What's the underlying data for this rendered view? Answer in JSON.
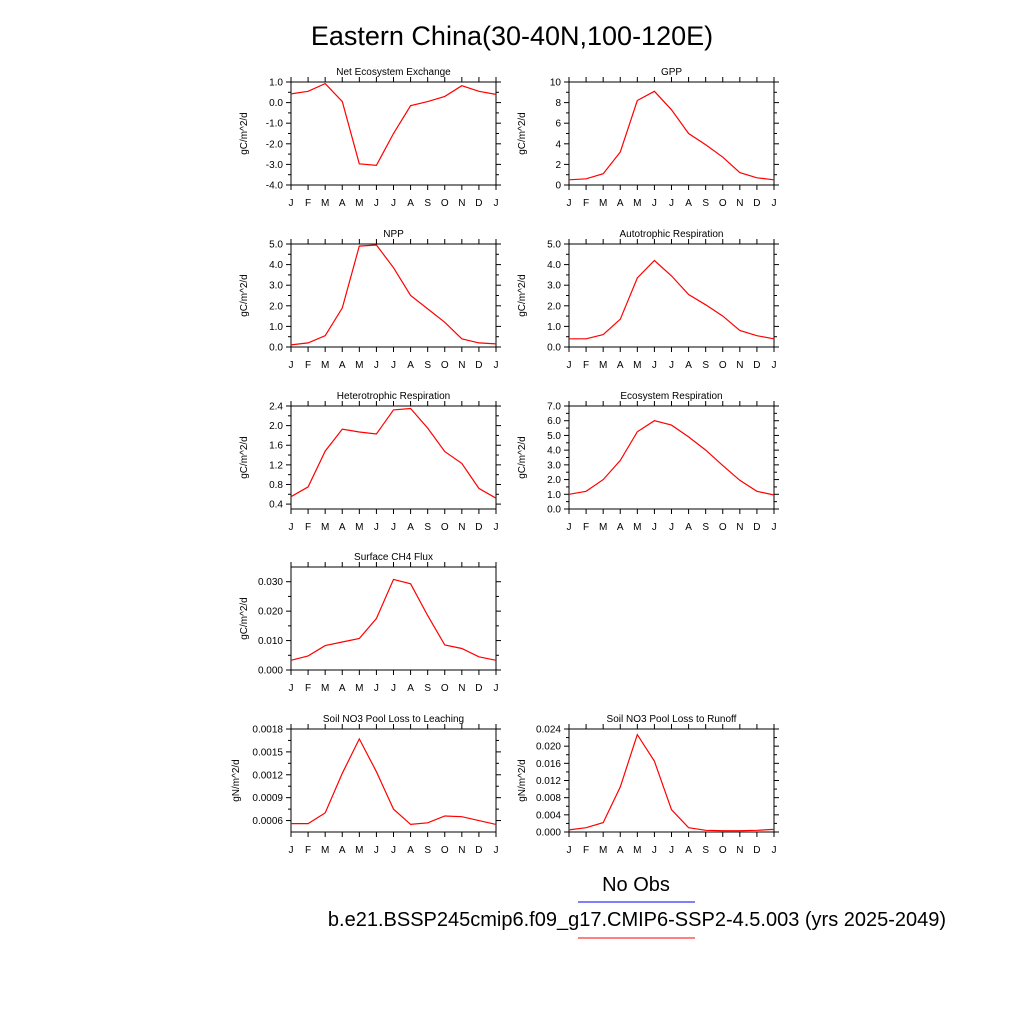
{
  "figure": {
    "title": "Eastern China(30-40N,100-120E)",
    "line_color": "#ff0000",
    "months": [
      "J",
      "F",
      "M",
      "A",
      "M",
      "J",
      "J",
      "A",
      "S",
      "O",
      "N",
      "D",
      "J"
    ]
  },
  "legend": {
    "items": [
      {
        "label": "No Obs",
        "color": "#0000ff"
      },
      {
        "label": "b.e21.BSSP245cmip6.f09_g17.CMIP6-SSP2-4.5.003 (yrs 2025-2049)",
        "color": "#ff0000"
      }
    ]
  },
  "chart_data": [
    {
      "type": "line",
      "title": "Net Ecosystem Exchange",
      "ylabel": "gC/m^2/d",
      "ylim": [
        -4.0,
        1.0
      ],
      "yticks": [
        "-4.0",
        "-3.0",
        "-2.0",
        "-1.0",
        "0.0",
        "1.0"
      ],
      "yticks_values": [
        -4.0,
        -3.0,
        -2.0,
        -1.0,
        0.0,
        1.0
      ],
      "values": [
        0.42,
        0.55,
        0.92,
        0.05,
        -2.97,
        -3.05,
        -1.5,
        -0.15,
        0.05,
        0.3,
        0.82,
        0.55,
        0.4
      ]
    },
    {
      "type": "line",
      "title": "GPP",
      "ylabel": "gC/m^2/d",
      "ylim": [
        0,
        10
      ],
      "yticks": [
        "0",
        "2",
        "4",
        "6",
        "8",
        "10"
      ],
      "yticks_values": [
        0,
        2,
        4,
        6,
        8,
        10
      ],
      "values": [
        0.5,
        0.6,
        1.1,
        3.2,
        8.2,
        9.1,
        7.3,
        5.0,
        3.9,
        2.7,
        1.2,
        0.7,
        0.5
      ]
    },
    {
      "type": "line",
      "title": "NPP",
      "ylabel": "gC/m^2/d",
      "ylim": [
        0.0,
        5.0
      ],
      "yticks": [
        "0.0",
        "1.0",
        "2.0",
        "3.0",
        "4.0",
        "5.0"
      ],
      "yticks_values": [
        0,
        1,
        2,
        3,
        4,
        5
      ],
      "values": [
        0.1,
        0.2,
        0.55,
        1.9,
        4.9,
        4.95,
        3.85,
        2.5,
        1.85,
        1.2,
        0.4,
        0.2,
        0.15
      ]
    },
    {
      "type": "line",
      "title": "Autotrophic Respiration",
      "ylabel": "gC/m^2/d",
      "ylim": [
        0.0,
        5.0
      ],
      "yticks": [
        "0.0",
        "1.0",
        "2.0",
        "3.0",
        "4.0",
        "5.0"
      ],
      "yticks_values": [
        0,
        1,
        2,
        3,
        4,
        5
      ],
      "values": [
        0.4,
        0.4,
        0.6,
        1.35,
        3.35,
        4.2,
        3.45,
        2.55,
        2.05,
        1.5,
        0.8,
        0.55,
        0.4
      ]
    },
    {
      "type": "line",
      "title": "Heterotrophic Respiration",
      "ylabel": "gC/m^2/d",
      "ylim": [
        0.3,
        2.4
      ],
      "yticks": [
        "0.4",
        "0.8",
        "1.2",
        "1.6",
        "2.0",
        "2.4"
      ],
      "yticks_values": [
        0.4,
        0.8,
        1.2,
        1.6,
        2.0,
        2.4
      ],
      "values": [
        0.55,
        0.75,
        1.48,
        1.93,
        1.87,
        1.83,
        2.32,
        2.35,
        1.95,
        1.47,
        1.23,
        0.72,
        0.52
      ]
    },
    {
      "type": "line",
      "title": "Ecosystem Respiration",
      "ylabel": "gC/m^2/d",
      "ylim": [
        0.0,
        7.0
      ],
      "yticks": [
        "0.0",
        "1.0",
        "2.0",
        "3.0",
        "4.0",
        "5.0",
        "6.0",
        "7.0"
      ],
      "yticks_values": [
        0,
        1,
        2,
        3,
        4,
        5,
        6,
        7
      ],
      "values": [
        1.0,
        1.2,
        2.0,
        3.3,
        5.25,
        6.0,
        5.7,
        4.9,
        4.0,
        2.95,
        1.95,
        1.2,
        0.95
      ]
    },
    {
      "type": "line",
      "title": "Surface CH4 Flux",
      "ylabel": "gC/m^2/d",
      "ylim": [
        0.0,
        0.035
      ],
      "yticks": [
        "0.000",
        "0.010",
        "0.020",
        "0.030"
      ],
      "yticks_values": [
        0.0,
        0.01,
        0.02,
        0.03
      ],
      "values": [
        0.0033,
        0.0048,
        0.0083,
        0.0095,
        0.0107,
        0.0175,
        0.0308,
        0.0293,
        0.0185,
        0.0085,
        0.0073,
        0.0045,
        0.0033
      ]
    },
    {
      "type": "line",
      "title": "Soil NO3 Pool Loss to Leaching",
      "ylabel": "gN/m^2/d",
      "ylim": [
        0.00045,
        0.0018
      ],
      "yticks": [
        "0.0006",
        "0.0009",
        "0.0012",
        "0.0015",
        "0.0018"
      ],
      "yticks_values": [
        0.0006,
        0.0009,
        0.0012,
        0.0015,
        0.0018
      ],
      "values": [
        0.00056,
        0.00056,
        0.0007,
        0.00122,
        0.00167,
        0.00124,
        0.00075,
        0.00055,
        0.00057,
        0.00066,
        0.00065,
        0.0006,
        0.00055
      ]
    },
    {
      "type": "line",
      "title": "Soil NO3 Pool Loss to Runoff",
      "ylabel": "gN/m^2/d",
      "ylim": [
        0.0,
        0.024
      ],
      "yticks": [
        "0.000",
        "0.004",
        "0.008",
        "0.012",
        "0.016",
        "0.020",
        "0.024"
      ],
      "yticks_values": [
        0,
        0.004,
        0.008,
        0.012,
        0.016,
        0.02,
        0.024
      ],
      "values": [
        0.0005,
        0.001,
        0.0022,
        0.0105,
        0.0227,
        0.0165,
        0.0052,
        0.001,
        0.0004,
        0.0003,
        0.0003,
        0.0004,
        0.0006
      ]
    }
  ]
}
